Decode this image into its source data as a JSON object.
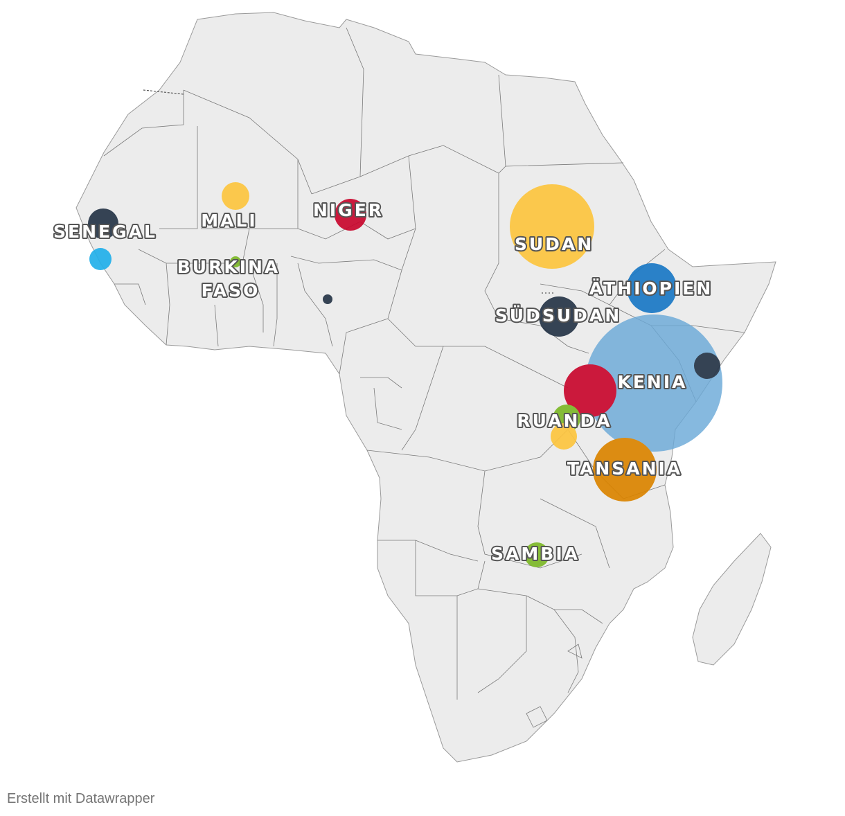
{
  "credit": "Erstellt mit Datawrapper",
  "colors": {
    "land": "#ececec",
    "border": "#7a7a7a",
    "yellow": "#fdc53f",
    "red": "#c9082e",
    "navy": "#263548",
    "lightblue": "#22b0ea",
    "blue": "#1a79c5",
    "skyblue": "#6aa9d8",
    "green": "#7db928",
    "orange": "#db8400"
  },
  "labels": {
    "senegal": "SENEGAL",
    "mali": "MALI",
    "niger": "NIGER",
    "burkina_1": "BURKINA",
    "burkina_2": "FASO",
    "sudan": "SUDAN",
    "aethiopien": "ÄTHIOPIEN",
    "suedsudan": "SÜDSUDAN",
    "kenia": "KENIA",
    "ruanda": "RUANDA",
    "tansania": "TANSANIA",
    "sambia": "SAMBIA"
  }
}
